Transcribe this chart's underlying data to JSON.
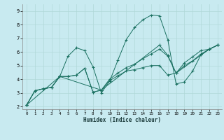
{
  "xlabel": "Humidex (Indice chaleur)",
  "bg_color": "#c8eaf0",
  "line_color": "#1a7060",
  "grid_color": "#b0d8d8",
  "xlim": [
    -0.5,
    23.5
  ],
  "ylim": [
    1.8,
    9.5
  ],
  "xticks": [
    0,
    1,
    2,
    3,
    4,
    5,
    6,
    7,
    8,
    9,
    10,
    11,
    12,
    13,
    14,
    15,
    16,
    17,
    18,
    19,
    20,
    21,
    22,
    23
  ],
  "yticks": [
    2,
    3,
    4,
    5,
    6,
    7,
    8,
    9
  ],
  "curve_main": {
    "x": [
      0,
      1,
      2,
      3,
      4,
      5,
      6,
      7,
      8,
      9,
      10,
      11,
      12,
      13,
      14,
      15,
      16,
      17,
      18,
      19,
      20,
      21,
      22,
      23
    ],
    "y": [
      2.1,
      3.15,
      3.3,
      3.4,
      4.2,
      5.7,
      6.3,
      6.1,
      4.9,
      3.0,
      3.85,
      5.4,
      6.9,
      7.8,
      8.35,
      8.7,
      8.65,
      6.9,
      3.65,
      3.8,
      4.6,
      5.8,
      6.2,
      6.5
    ]
  },
  "curve_low": {
    "x": [
      0,
      1,
      2,
      3,
      4,
      5,
      6,
      7,
      8,
      9,
      10,
      11,
      12,
      13,
      14,
      15,
      16,
      17,
      18,
      19,
      20,
      21,
      22,
      23
    ],
    "y": [
      2.1,
      3.15,
      3.3,
      3.4,
      4.2,
      4.2,
      4.3,
      4.8,
      3.05,
      3.2,
      3.9,
      4.25,
      4.6,
      4.7,
      4.85,
      5.0,
      5.0,
      4.3,
      4.45,
      5.2,
      5.65,
      6.1,
      6.2,
      6.5
    ]
  },
  "curve_mid": {
    "x": [
      0,
      1,
      2,
      3,
      4,
      5,
      6,
      7,
      8,
      9,
      10,
      11,
      12,
      13,
      14,
      15,
      16,
      17,
      18,
      19,
      20,
      21,
      22,
      23
    ],
    "y": [
      2.1,
      3.15,
      3.3,
      3.4,
      4.2,
      4.2,
      4.3,
      4.8,
      3.05,
      3.2,
      4.0,
      4.45,
      4.85,
      5.1,
      5.5,
      5.85,
      6.2,
      5.7,
      4.45,
      5.0,
      5.35,
      5.85,
      6.2,
      6.5
    ]
  },
  "curve_up": {
    "x": [
      0,
      4,
      9,
      16,
      17,
      18,
      22,
      23
    ],
    "y": [
      2.1,
      4.2,
      3.2,
      6.5,
      5.75,
      4.45,
      6.2,
      6.5
    ]
  }
}
